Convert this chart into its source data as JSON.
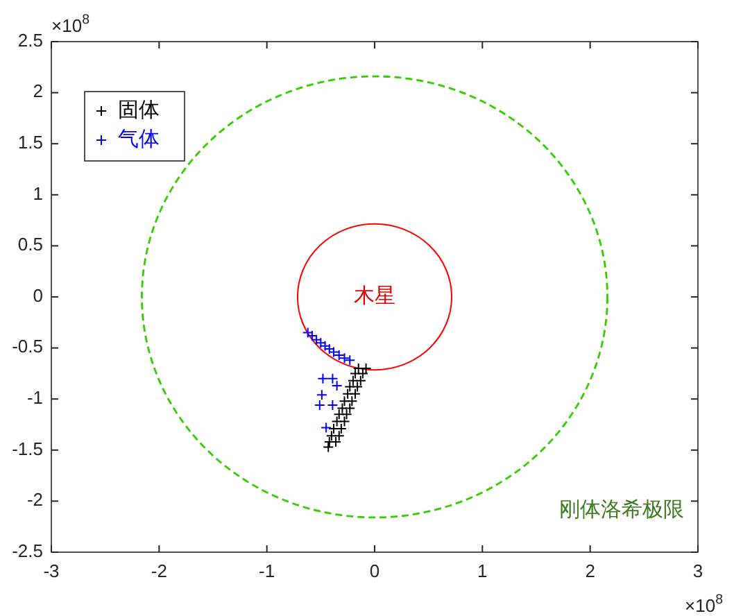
{
  "chart_data": {
    "type": "scatter",
    "xlim": [
      -3,
      3
    ],
    "ylim": [
      -2.5,
      2.5
    ],
    "xticks": [
      -3,
      -2,
      -1,
      0,
      1,
      2,
      3
    ],
    "yticks": [
      -2.5,
      -2,
      -1.5,
      -1,
      -0.5,
      0,
      0.5,
      1,
      1.5,
      2,
      2.5
    ],
    "grid": false,
    "legend": "top left",
    "marker": "cross",
    "series": [
      {
        "name": "固体",
        "color": "#000000",
        "x": [
          -0.15,
          -0.18,
          -0.2,
          -0.23,
          -0.25,
          -0.28,
          -0.3,
          -0.33,
          -0.35,
          -0.38,
          -0.4,
          -0.42,
          -0.43,
          -0.08,
          -0.11,
          -0.13,
          -0.16,
          -0.18,
          -0.21,
          -0.23,
          -0.26,
          -0.28,
          -0.31,
          -0.33,
          -0.36
        ],
        "values": [
          -0.7,
          -0.75,
          -0.82,
          -0.88,
          -0.95,
          -1.02,
          -1.09,
          -1.15,
          -1.22,
          -1.29,
          -1.36,
          -1.42,
          -1.47,
          -0.7,
          -0.75,
          -0.82,
          -0.88,
          -0.95,
          -1.02,
          -1.09,
          -1.15,
          -1.22,
          -1.29,
          -1.36,
          -1.42
        ]
      },
      {
        "name": "气体",
        "color": "#0000ff",
        "x": [
          -0.62,
          -0.58,
          -0.54,
          -0.5,
          -0.46,
          -0.42,
          -0.38,
          -0.33,
          -0.28,
          -0.23,
          -0.48,
          -0.39,
          -0.35,
          -0.49,
          -0.51,
          -0.39,
          -0.45
        ],
        "values": [
          -0.35,
          -0.38,
          -0.42,
          -0.45,
          -0.48,
          -0.51,
          -0.54,
          -0.57,
          -0.6,
          -0.62,
          -0.8,
          -0.8,
          -0.87,
          -0.96,
          -1.06,
          -1.06,
          -1.28
        ]
      }
    ],
    "annotations": [
      "木星",
      "刚体洛希极限",
      "×10$^{8}$",
      "×10$^{8}$"
    ]
  }
}
